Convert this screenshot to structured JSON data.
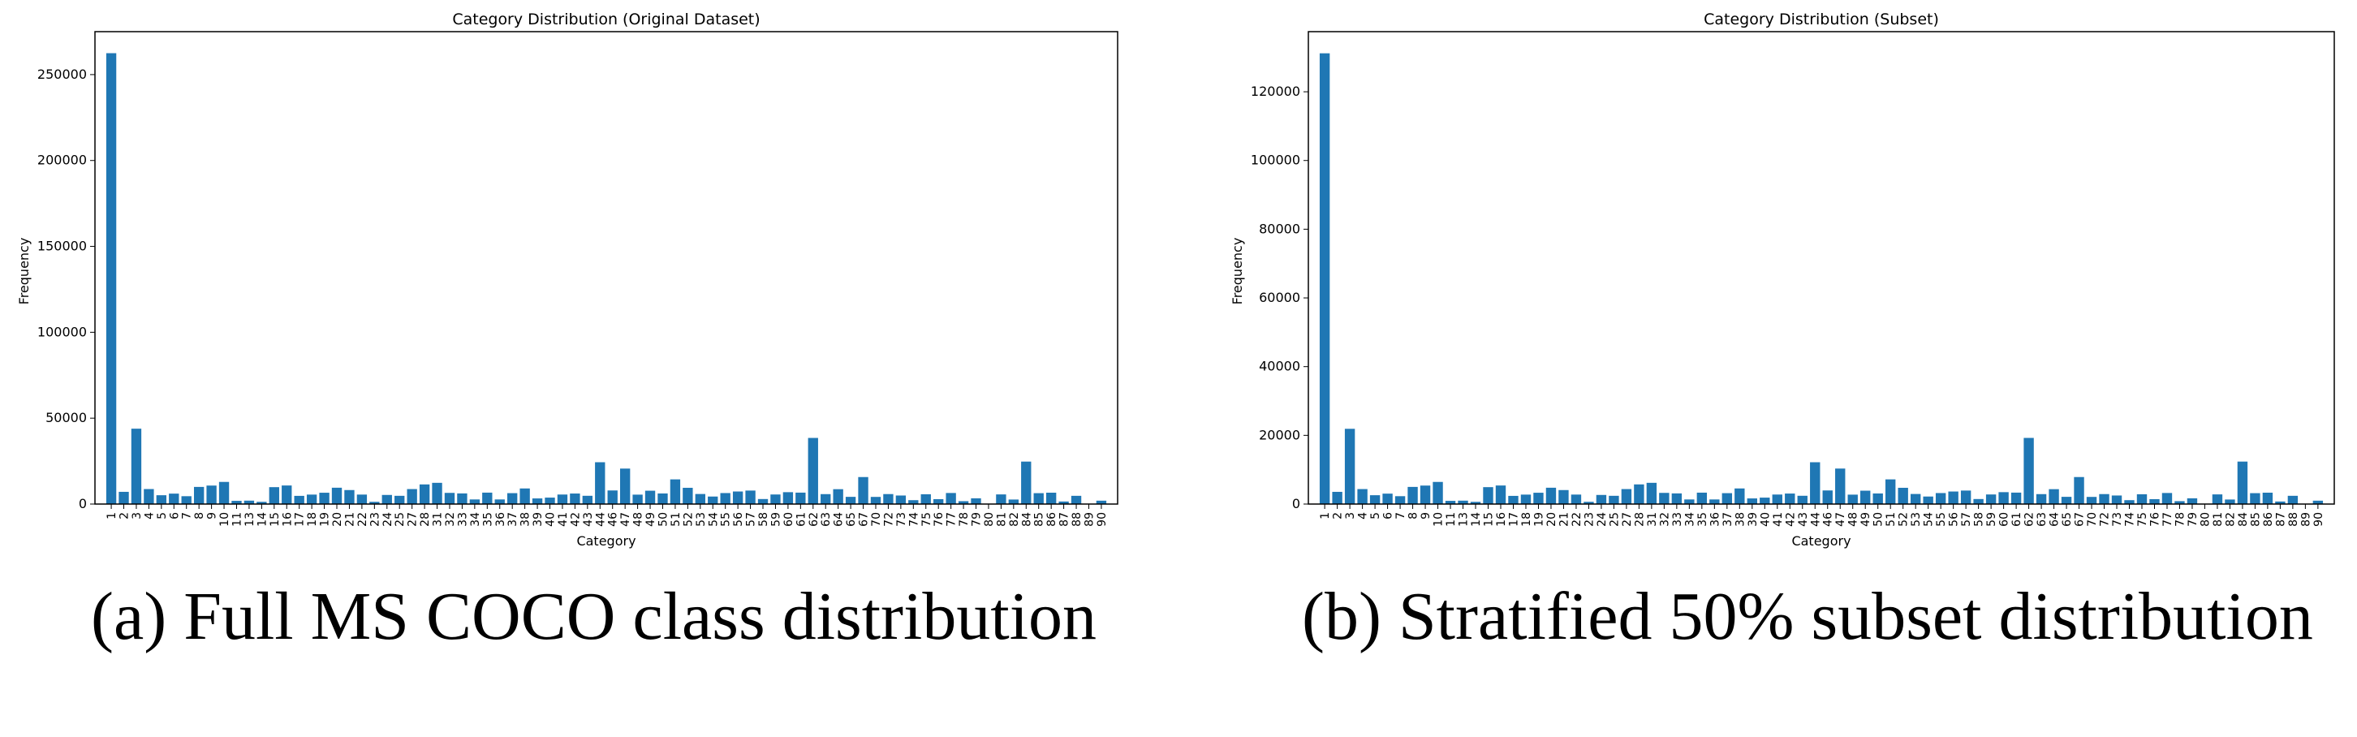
{
  "charts": [
    {
      "panel": "a",
      "title": "Category Distribution (Original Dataset)",
      "xlabel": "Category",
      "ylabel": "Frequency",
      "caption": "(a) Full MS COCO class distribution"
    },
    {
      "panel": "b",
      "title": "Category Distribution (Subset)",
      "xlabel": "Category",
      "ylabel": "Frequency",
      "caption": "(b) Stratified 50% subset distribution"
    }
  ],
  "colors": {
    "bar": "#1f77b4",
    "axis": "#000000",
    "text": "#000000"
  },
  "chart_data": [
    {
      "type": "bar",
      "title": "Category Distribution (Original Dataset)",
      "xlabel": "Category",
      "ylabel": "Frequency",
      "ylim": [
        0,
        275000
      ],
      "yticks": [
        0,
        50000,
        100000,
        150000,
        200000,
        250000
      ],
      "grid": false,
      "categories": [
        "1",
        "2",
        "3",
        "4",
        "5",
        "6",
        "7",
        "8",
        "9",
        "10",
        "11",
        "13",
        "14",
        "15",
        "16",
        "17",
        "18",
        "19",
        "20",
        "21",
        "22",
        "23",
        "24",
        "25",
        "27",
        "28",
        "31",
        "32",
        "33",
        "34",
        "35",
        "36",
        "37",
        "38",
        "39",
        "40",
        "41",
        "42",
        "43",
        "44",
        "46",
        "47",
        "48",
        "49",
        "50",
        "51",
        "52",
        "53",
        "54",
        "55",
        "56",
        "57",
        "58",
        "59",
        "60",
        "61",
        "62",
        "63",
        "64",
        "65",
        "67",
        "70",
        "72",
        "73",
        "74",
        "75",
        "76",
        "77",
        "78",
        "79",
        "80",
        "81",
        "82",
        "84",
        "85",
        "86",
        "87",
        "88",
        "89",
        "90"
      ],
      "values": [
        262465,
        7113,
        43867,
        8725,
        5135,
        6069,
        4571,
        9973,
        10759,
        12884,
        1865,
        1983,
        1285,
        9838,
        10806,
        4768,
        5508,
        6587,
        9509,
        8147,
        5513,
        1294,
        5303,
        4798,
        8720,
        11431,
        12354,
        6496,
        6192,
        2682,
        6646,
        2685,
        6347,
        9076,
        3276,
        3747,
        5543,
        6126,
        4812,
        24342,
        7913,
        20650,
        5479,
        7770,
        6165,
        14358,
        9458,
        5851,
        4373,
        6399,
        7308,
        7852,
        2918,
        5570,
        6912,
        6652,
        38491,
        5779,
        8652,
        4192,
        15714,
        4157,
        5805,
        4970,
        2262,
        5703,
        2855,
        6434,
        1673,
        3334,
        225,
        5610,
        2637,
        24715,
        6334,
        6613,
        1481,
        4793,
        198,
        1962
      ]
    },
    {
      "type": "bar",
      "title": "Category Distribution (Subset)",
      "xlabel": "Category",
      "ylabel": "Frequency",
      "ylim": [
        0,
        137500
      ],
      "yticks": [
        0,
        20000,
        40000,
        60000,
        80000,
        100000,
        120000
      ],
      "grid": false,
      "categories": [
        "1",
        "2",
        "3",
        "4",
        "5",
        "6",
        "7",
        "8",
        "9",
        "10",
        "11",
        "13",
        "14",
        "15",
        "16",
        "17",
        "18",
        "19",
        "20",
        "21",
        "22",
        "23",
        "24",
        "25",
        "27",
        "28",
        "31",
        "32",
        "33",
        "34",
        "35",
        "36",
        "37",
        "38",
        "39",
        "40",
        "41",
        "42",
        "43",
        "44",
        "46",
        "47",
        "48",
        "49",
        "50",
        "51",
        "52",
        "53",
        "54",
        "55",
        "56",
        "57",
        "58",
        "59",
        "60",
        "61",
        "62",
        "63",
        "64",
        "65",
        "67",
        "70",
        "72",
        "73",
        "74",
        "75",
        "76",
        "77",
        "78",
        "79",
        "80",
        "81",
        "82",
        "84",
        "85",
        "86",
        "87",
        "88",
        "89",
        "90"
      ],
      "values": [
        131200,
        3550,
        21900,
        4360,
        2570,
        3030,
        2290,
        4990,
        5380,
        6440,
        930,
        990,
        640,
        4920,
        5400,
        2380,
        2750,
        3290,
        4750,
        4070,
        2760,
        650,
        2650,
        2400,
        4360,
        5720,
        6180,
        3250,
        3100,
        1340,
        3320,
        1340,
        3170,
        4540,
        1640,
        1870,
        2770,
        3060,
        2410,
        12170,
        3960,
        10330,
        2740,
        3890,
        3080,
        7180,
        4730,
        2930,
        2190,
        3200,
        3650,
        3930,
        1460,
        2790,
        3460,
        3330,
        19250,
        2890,
        4330,
        2100,
        7860,
        2080,
        2900,
        2490,
        1130,
        2850,
        1430,
        3220,
        840,
        1670,
        110,
        2810,
        1320,
        12360,
        3170,
        3310,
        740,
        2400,
        100,
        980
      ]
    }
  ]
}
